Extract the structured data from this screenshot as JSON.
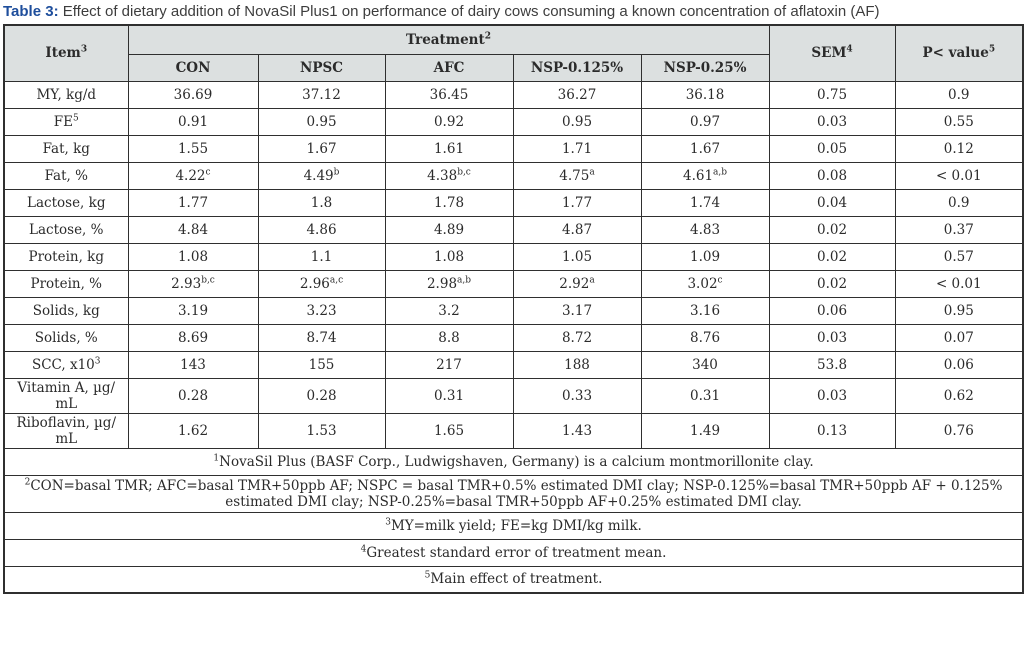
{
  "title": {
    "prefix": "Table 3:",
    "text": " Effect of dietary addition of NovaSil Plus1 on performance of dairy cows consuming a known concentration of aflatoxin (AF)"
  },
  "colors": {
    "title_accent": "#1e4e9c",
    "header_bg": "#dce0e0",
    "border": "#2f2f2f",
    "text": "#2b2b2b"
  },
  "table": {
    "header": {
      "item": {
        "v": "Item",
        "sup": "3"
      },
      "treatment": {
        "v": "Treatment",
        "sup": "2"
      },
      "sem": {
        "v": "SEM",
        "sup": "4"
      },
      "p_value": {
        "v": "P< value",
        "sup": "5"
      },
      "treatment_cols": [
        "CON",
        "NPSC",
        "AFC",
        "NSP-0.125%",
        "NSP-0.25%"
      ]
    },
    "rows": [
      {
        "label": "MY, kg/d",
        "values": [
          "36.69",
          "37.12",
          "36.45",
          "36.27",
          "36.18",
          "0.75",
          "0.9"
        ]
      },
      {
        "label": {
          "v": "FE",
          "sup": "5"
        },
        "values": [
          "0.91",
          "0.95",
          "0.92",
          "0.95",
          "0.97",
          "0.03",
          "0.55"
        ]
      },
      {
        "label": "Fat, kg",
        "values": [
          "1.55",
          "1.67",
          "1.61",
          "1.71",
          "1.67",
          "0.05",
          "0.12"
        ]
      },
      {
        "label": "Fat, %",
        "values": [
          {
            "v": "4.22",
            "sup": "c"
          },
          {
            "v": "4.49",
            "sup": "b"
          },
          {
            "v": "4.38",
            "sup": "b,c"
          },
          {
            "v": "4.75",
            "sup": "a"
          },
          {
            "v": "4.61",
            "sup": "a,b"
          },
          "0.08",
          "< 0.01"
        ]
      },
      {
        "label": "Lactose, kg",
        "values": [
          "1.77",
          "1.8",
          "1.78",
          "1.77",
          "1.74",
          "0.04",
          "0.9"
        ]
      },
      {
        "label": "Lactose, %",
        "values": [
          "4.84",
          "4.86",
          "4.89",
          "4.87",
          "4.83",
          "0.02",
          "0.37"
        ]
      },
      {
        "label": "Protein, kg",
        "values": [
          "1.08",
          "1.1",
          "1.08",
          "1.05",
          "1.09",
          "0.02",
          "0.57"
        ]
      },
      {
        "label": "Protein, %",
        "values": [
          {
            "v": "2.93",
            "sup": "b,c"
          },
          {
            "v": "2.96",
            "sup": "a,c"
          },
          {
            "v": "2.98",
            "sup": "a,b"
          },
          {
            "v": "2.92",
            "sup": "a"
          },
          {
            "v": "3.02",
            "sup": "c"
          },
          "0.02",
          "< 0.01"
        ]
      },
      {
        "label": "Solids, kg",
        "values": [
          "3.19",
          "3.23",
          "3.2",
          "3.17",
          "3.16",
          "0.06",
          "0.95"
        ]
      },
      {
        "label": "Solids, %",
        "values": [
          "8.69",
          "8.74",
          "8.8",
          "8.72",
          "8.76",
          "0.03",
          "0.07"
        ]
      },
      {
        "label": {
          "v": "SCC, x10",
          "sup": "3"
        },
        "values": [
          "143",
          "155",
          "217",
          "188",
          "340",
          "53.8",
          "0.06"
        ]
      },
      {
        "label": "Vitamin A, µg/\nmL",
        "values": [
          "0.28",
          "0.28",
          "0.31",
          "0.33",
          "0.31",
          "0.03",
          "0.62"
        ]
      },
      {
        "label": "Riboflavin, µg/\nmL",
        "values": [
          "1.62",
          "1.53",
          "1.65",
          "1.43",
          "1.49",
          "0.13",
          "0.76"
        ]
      }
    ],
    "footnotes": [
      {
        "sup": "1",
        "text": "NovaSil Plus (BASF Corp., Ludwigshaven, Germany) is a calcium montmorillonite clay."
      },
      {
        "sup": "2",
        "text": "CON=basal TMR; AFC=basal TMR+50ppb AF; NSPC = basal TMR+0.5% estimated DMI clay; NSP-0.125%=basal TMR+50ppb AF + 0.125% estimated DMI clay; NSP-0.25%=basal TMR+50ppb AF+0.25% estimated DMI clay."
      },
      {
        "sup": "3",
        "text": "MY=milk yield; FE=kg DMI/kg milk."
      },
      {
        "sup": "4",
        "text": "Greatest standard error of treatment mean."
      },
      {
        "sup": "5",
        "text": "Main effect of treatment."
      }
    ]
  }
}
